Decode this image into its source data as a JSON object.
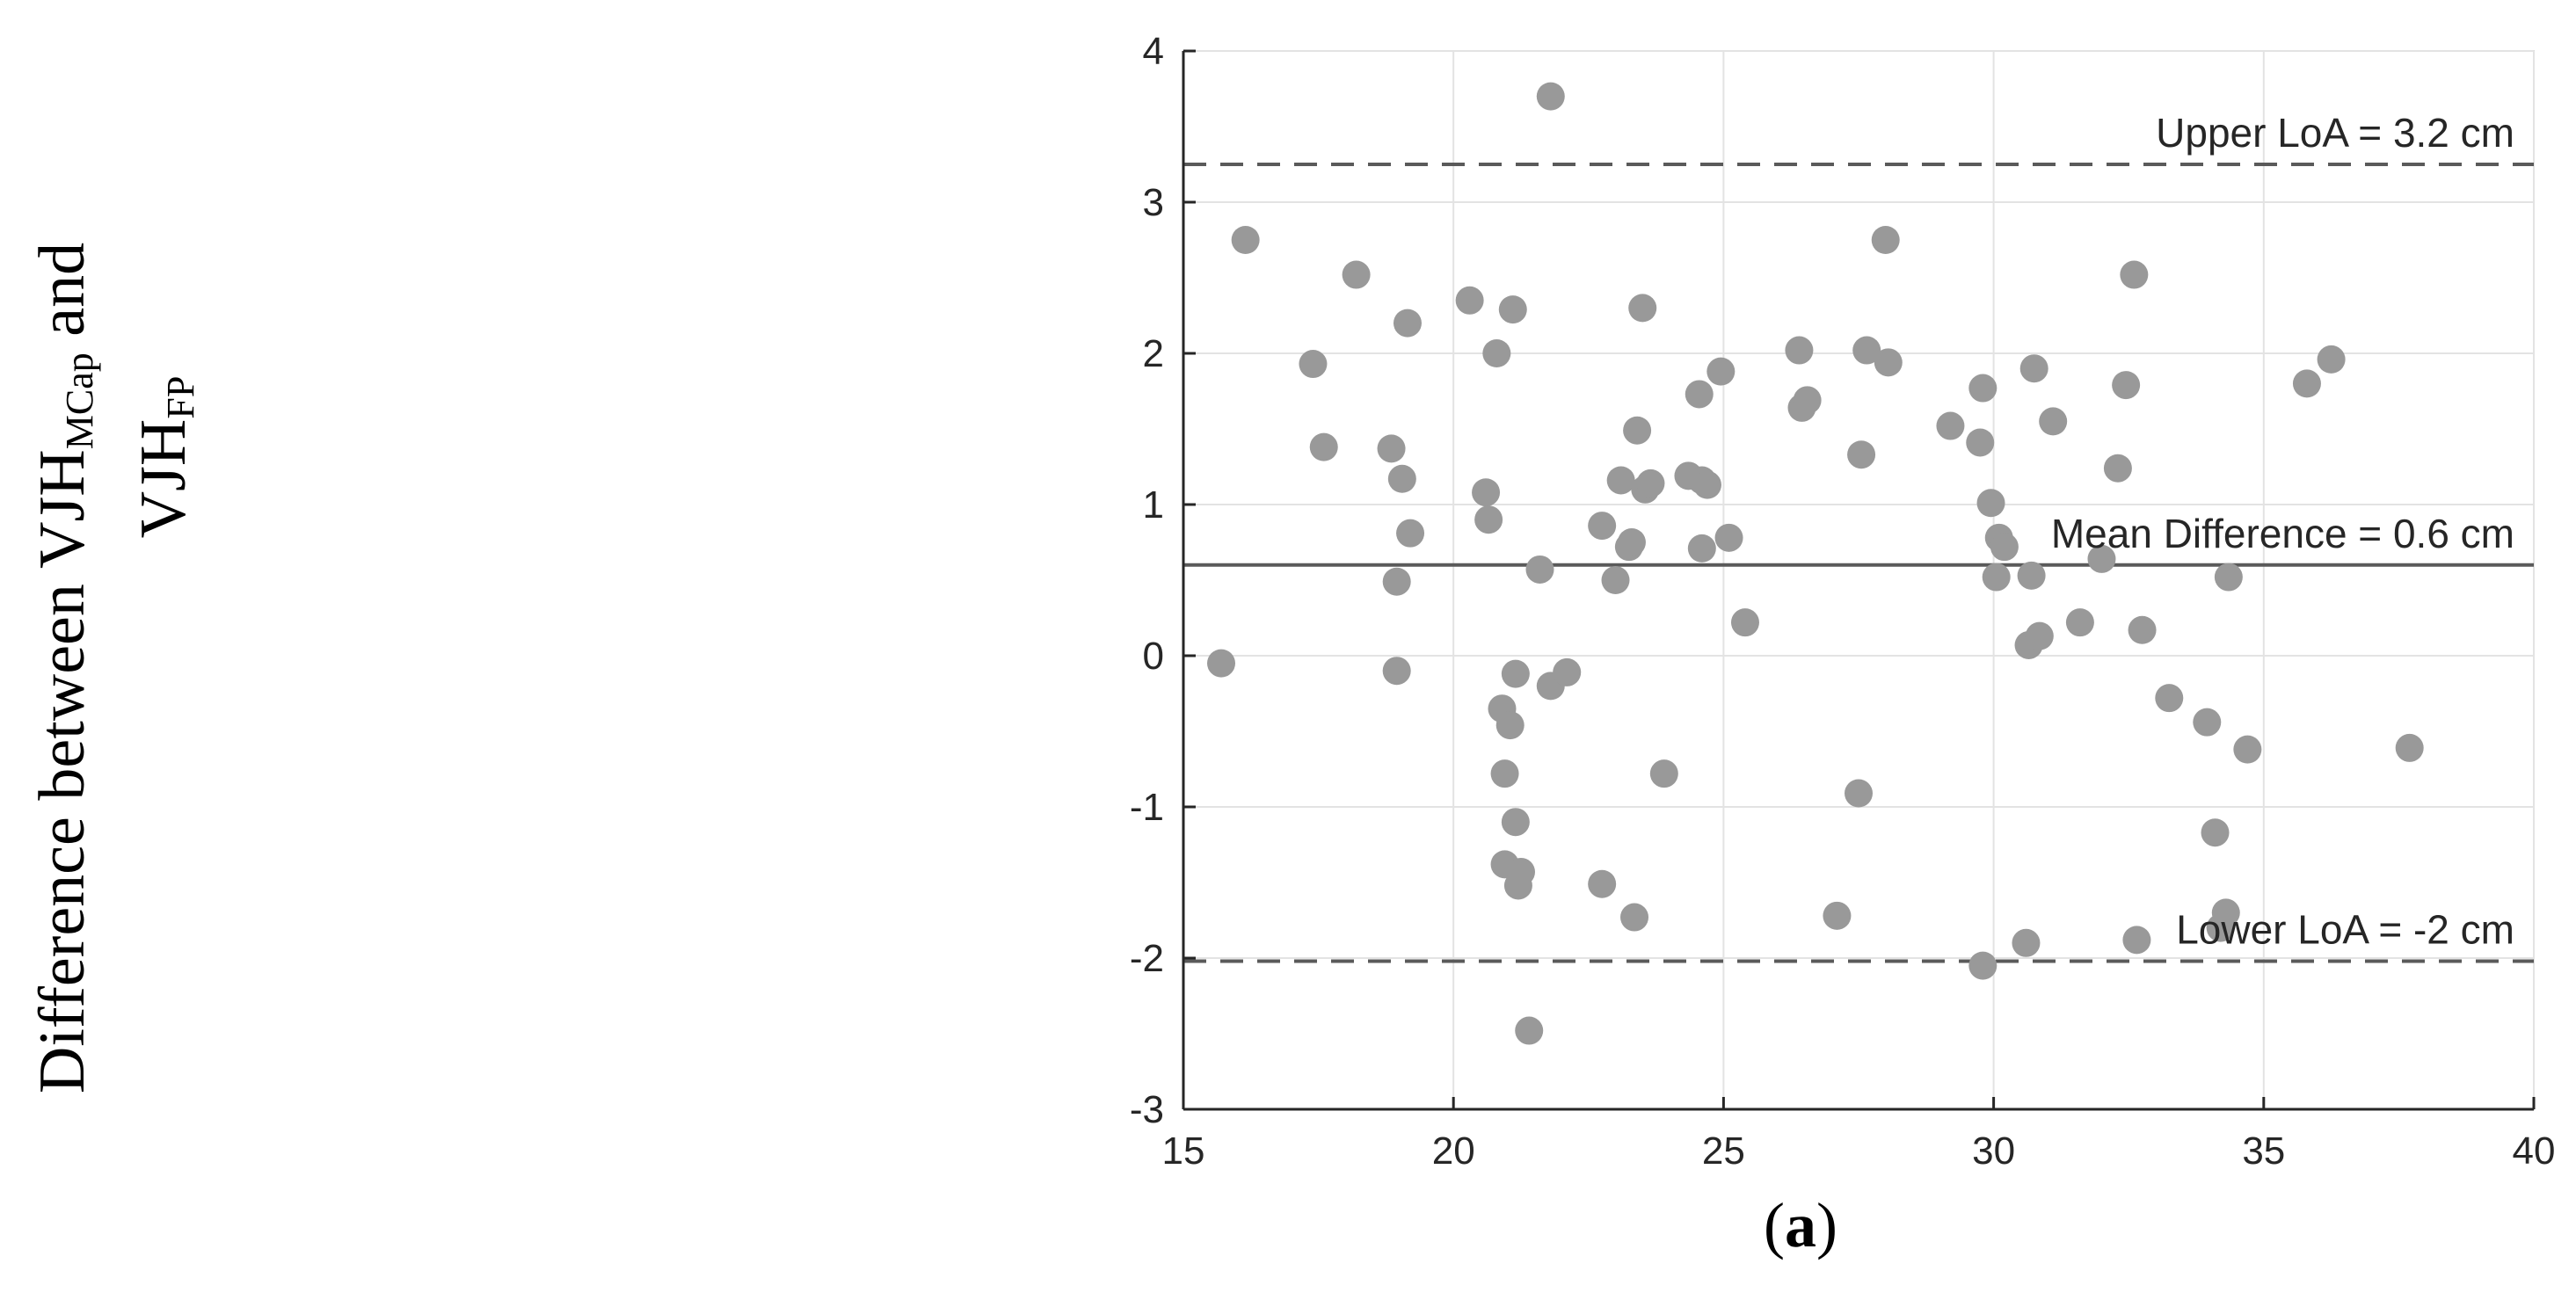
{
  "chart_data": {
    "type": "scatter",
    "title": "",
    "xlabel": "",
    "ylabel": {
      "line1_main": "Difference between VJH",
      "line1_sub": "MCap",
      "line1_tail": " and",
      "line2_main": "VJH",
      "line2_sub": "FP"
    },
    "panel_label": {
      "open": "(",
      "letter": "a",
      "close": ")"
    },
    "xlim": [
      15,
      40
    ],
    "ylim": [
      -3,
      4
    ],
    "xticks": [
      15,
      20,
      25,
      30,
      35,
      40
    ],
    "yticks": [
      -3,
      -2,
      -1,
      0,
      1,
      2,
      3,
      4
    ],
    "grid": true,
    "marker_color": "#999999",
    "reference_lines": [
      {
        "name": "upper",
        "label": "Upper LoA = 3.2 cm",
        "y": 3.25,
        "style": "dashed"
      },
      {
        "name": "mean",
        "label": "Mean Difference = 0.6 cm",
        "y": 0.6,
        "style": "solid"
      },
      {
        "name": "lower",
        "label": "Lower LoA = -2 cm",
        "y": -2.02,
        "style": "dashed"
      }
    ],
    "points": [
      [
        15.7,
        -0.05
      ],
      [
        16.15,
        2.75
      ],
      [
        17.4,
        1.93
      ],
      [
        17.6,
        1.38
      ],
      [
        18.2,
        2.52
      ],
      [
        18.85,
        1.37
      ],
      [
        18.95,
        0.49
      ],
      [
        18.95,
        -0.1
      ],
      [
        19.05,
        1.17
      ],
      [
        19.15,
        2.2
      ],
      [
        19.2,
        0.81
      ],
      [
        20.3,
        2.35
      ],
      [
        20.6,
        1.08
      ],
      [
        20.65,
        0.9
      ],
      [
        20.8,
        2.0
      ],
      [
        20.9,
        -0.35
      ],
      [
        20.95,
        -0.78
      ],
      [
        20.95,
        -1.38
      ],
      [
        21.05,
        -0.46
      ],
      [
        21.1,
        2.29
      ],
      [
        21.15,
        -0.12
      ],
      [
        21.15,
        -1.1
      ],
      [
        21.2,
        -1.52
      ],
      [
        21.25,
        -1.43
      ],
      [
        21.4,
        -2.48
      ],
      [
        21.6,
        0.57
      ],
      [
        21.8,
        3.7
      ],
      [
        21.8,
        -0.2
      ],
      [
        22.1,
        -0.11
      ],
      [
        22.75,
        0.86
      ],
      [
        22.75,
        -1.51
      ],
      [
        23.0,
        0.5
      ],
      [
        23.1,
        1.16
      ],
      [
        23.25,
        0.72
      ],
      [
        23.3,
        0.75
      ],
      [
        23.35,
        -1.73
      ],
      [
        23.4,
        1.49
      ],
      [
        23.5,
        2.3
      ],
      [
        23.55,
        1.1
      ],
      [
        23.65,
        1.14
      ],
      [
        23.9,
        -0.78
      ],
      [
        24.35,
        1.19
      ],
      [
        24.55,
        1.73
      ],
      [
        24.6,
        0.71
      ],
      [
        24.6,
        1.16
      ],
      [
        24.7,
        1.13
      ],
      [
        24.95,
        1.88
      ],
      [
        25.1,
        0.78
      ],
      [
        25.4,
        0.22
      ],
      [
        26.4,
        2.02
      ],
      [
        26.45,
        1.64
      ],
      [
        26.55,
        1.69
      ],
      [
        27.1,
        -1.72
      ],
      [
        27.5,
        -0.91
      ],
      [
        27.55,
        1.33
      ],
      [
        27.65,
        2.02
      ],
      [
        28.0,
        2.75
      ],
      [
        28.05,
        1.94
      ],
      [
        29.2,
        1.52
      ],
      [
        29.75,
        1.41
      ],
      [
        29.8,
        1.77
      ],
      [
        29.8,
        -2.05
      ],
      [
        29.95,
        1.01
      ],
      [
        30.05,
        0.52
      ],
      [
        30.1,
        0.78
      ],
      [
        30.2,
        0.72
      ],
      [
        30.6,
        -1.9
      ],
      [
        30.65,
        0.07
      ],
      [
        30.7,
        0.53
      ],
      [
        30.75,
        1.9
      ],
      [
        30.85,
        0.13
      ],
      [
        31.1,
        1.55
      ],
      [
        31.6,
        0.22
      ],
      [
        32.0,
        0.64
      ],
      [
        32.3,
        1.24
      ],
      [
        32.45,
        1.79
      ],
      [
        32.6,
        2.52
      ],
      [
        32.65,
        -1.88
      ],
      [
        32.75,
        0.17
      ],
      [
        33.25,
        -0.28
      ],
      [
        33.95,
        -0.44
      ],
      [
        34.1,
        -1.17
      ],
      [
        34.2,
        -1.8
      ],
      [
        34.3,
        -1.7
      ],
      [
        34.35,
        0.52
      ],
      [
        34.7,
        -0.62
      ],
      [
        35.8,
        1.8
      ],
      [
        36.25,
        1.96
      ],
      [
        37.7,
        -0.61
      ]
    ]
  }
}
